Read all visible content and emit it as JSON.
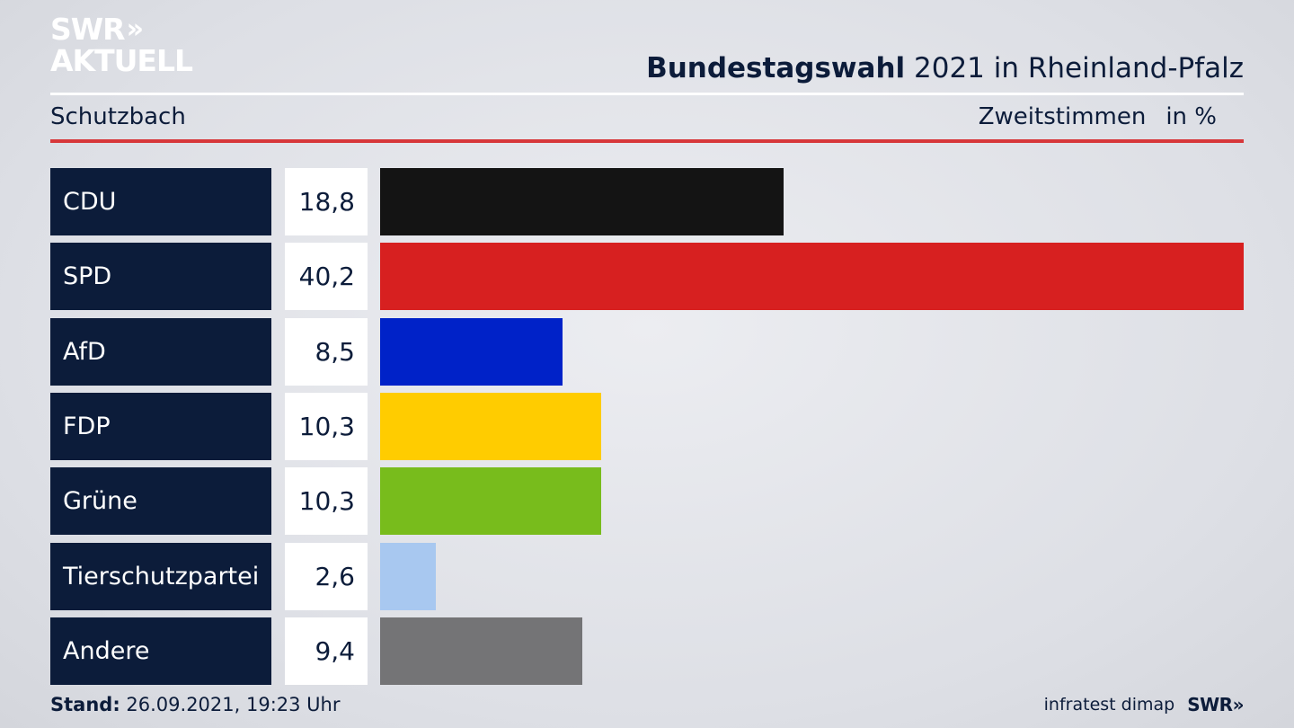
{
  "logo": {
    "line1": "SWR",
    "chevrons": "»",
    "line2": "AKTUELL"
  },
  "header": {
    "title_bold": "Bundestagswahl",
    "title_rest": " 2021 in Rheinland-Pfalz",
    "region": "Schutzbach",
    "measure": "Zweitstimmen",
    "unit": "in %"
  },
  "chart_data": {
    "type": "bar",
    "orientation": "horizontal",
    "title": "Bundestagswahl 2021 in Rheinland-Pfalz",
    "subtitle": "Schutzbach",
    "xlabel": "Zweitstimmen",
    "unit": "in %",
    "categories": [
      "CDU",
      "SPD",
      "AfD",
      "FDP",
      "Grüne",
      "Tierschutzpartei",
      "Andere"
    ],
    "values": [
      18.8,
      40.2,
      8.5,
      10.3,
      10.3,
      2.6,
      9.4
    ],
    "value_labels": [
      "18,8",
      "40,2",
      "8,5",
      "10,3",
      "10,3",
      "2,6",
      "9,4"
    ],
    "colors": [
      "#141414",
      "#d72020",
      "#0022c8",
      "#ffcc00",
      "#78bc1c",
      "#a8c8f0",
      "#747476"
    ],
    "xlim": [
      0,
      40.2
    ],
    "grid": false,
    "legend": "none"
  },
  "footer": {
    "stand_label": "Stand:",
    "stand_value": " 26.09.2021, 19:23 Uhr",
    "source": "infratest dimap",
    "brand": "SWR»"
  }
}
